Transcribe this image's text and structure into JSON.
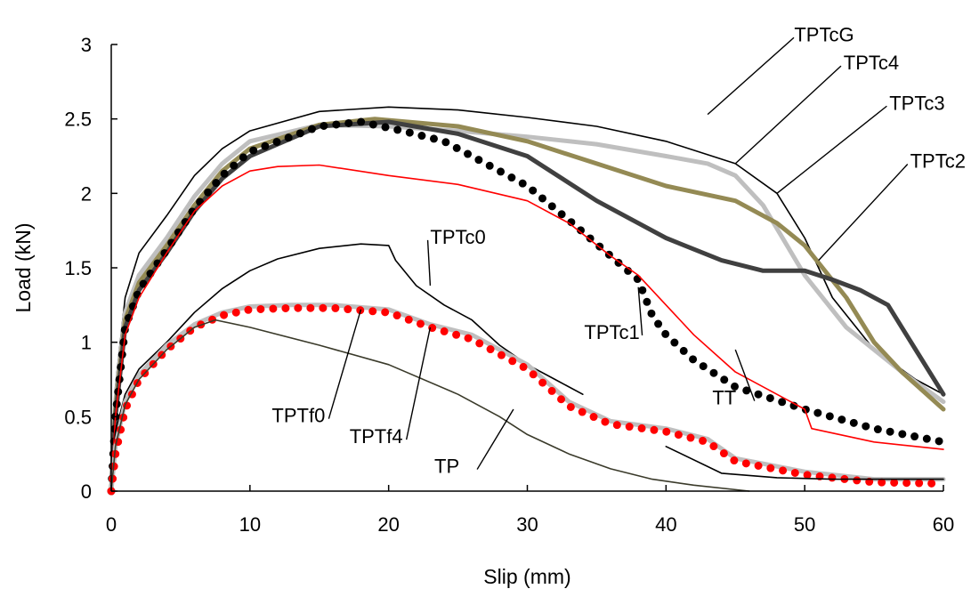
{
  "chart_data": {
    "type": "line",
    "title": "",
    "xlabel": "Slip (mm)",
    "ylabel": "Load (kN)",
    "xlim": [
      0,
      60
    ],
    "ylim": [
      0,
      3
    ],
    "xticks": [
      0,
      10,
      20,
      30,
      40,
      50,
      60
    ],
    "yticks": [
      0,
      0.5,
      1,
      1.5,
      2,
      2.5,
      3
    ],
    "ytick_labels": [
      "0",
      "0.5",
      "1",
      "1.5",
      "2",
      "2.5",
      "3"
    ],
    "grid": false,
    "legend": "none",
    "series": [
      {
        "name": "TPTcG",
        "color": "#000000",
        "style": "thin",
        "x": [
          0,
          0.3,
          1,
          2,
          4,
          6,
          8,
          10,
          15,
          20,
          25,
          30,
          35,
          40,
          45,
          48,
          50,
          52,
          55,
          58,
          60
        ],
        "y": [
          0,
          0.7,
          1.3,
          1.6,
          1.85,
          2.12,
          2.3,
          2.42,
          2.55,
          2.58,
          2.56,
          2.51,
          2.45,
          2.35,
          2.2,
          2.0,
          1.7,
          1.3,
          0.95,
          0.75,
          0.65
        ]
      },
      {
        "name": "TPTc4",
        "color": "#bfbfbf",
        "style": "thick",
        "x": [
          0,
          0.3,
          1,
          2,
          4,
          6,
          8,
          10,
          15,
          20,
          25,
          30,
          35,
          40,
          43,
          45,
          47,
          50,
          53,
          55,
          57,
          60
        ],
        "y": [
          0,
          0.6,
          1.2,
          1.45,
          1.7,
          1.98,
          2.2,
          2.35,
          2.46,
          2.45,
          2.42,
          2.38,
          2.33,
          2.25,
          2.2,
          2.12,
          1.92,
          1.45,
          1.1,
          0.95,
          0.8,
          0.6
        ]
      },
      {
        "name": "TPTc3",
        "color": "#948a54",
        "style": "thick",
        "x": [
          0,
          0.3,
          1,
          2,
          4,
          6,
          8,
          10,
          15,
          19,
          25,
          30,
          35,
          40,
          45,
          48,
          50,
          53,
          55,
          57,
          60
        ],
        "y": [
          0,
          0.55,
          1.15,
          1.4,
          1.65,
          1.92,
          2.15,
          2.3,
          2.46,
          2.5,
          2.45,
          2.35,
          2.2,
          2.05,
          1.95,
          1.8,
          1.65,
          1.3,
          1.0,
          0.8,
          0.55
        ]
      },
      {
        "name": "TPTc2",
        "color": "#404040",
        "style": "thick",
        "x": [
          0,
          0.3,
          1,
          2,
          4,
          6,
          8,
          10,
          15,
          20,
          25,
          30,
          35,
          40,
          44,
          47,
          50,
          52,
          54,
          56,
          58,
          60
        ],
        "y": [
          0,
          0.5,
          1.1,
          1.35,
          1.6,
          1.88,
          2.1,
          2.25,
          2.45,
          2.48,
          2.4,
          2.25,
          1.95,
          1.7,
          1.55,
          1.48,
          1.48,
          1.42,
          1.35,
          1.25,
          0.95,
          0.65
        ]
      },
      {
        "name": "TPTc1",
        "color": "#000000",
        "style": "dotted-thick",
        "x": [
          0,
          0.3,
          1,
          2,
          4,
          6,
          8,
          10,
          15,
          18,
          21,
          24,
          27,
          30,
          33,
          36,
          38,
          39,
          40,
          42,
          45,
          50,
          55,
          60
        ],
        "y": [
          0,
          0.5,
          1.1,
          1.35,
          1.62,
          1.9,
          2.12,
          2.28,
          2.45,
          2.48,
          2.42,
          2.35,
          2.2,
          2.05,
          1.82,
          1.58,
          1.42,
          1.18,
          1.05,
          0.88,
          0.7,
          0.55,
          0.42,
          0.33
        ]
      },
      {
        "name": "TT",
        "color": "#ff0000",
        "style": "thin",
        "x": [
          0,
          0.3,
          1,
          2,
          4,
          6,
          8,
          10,
          12,
          15,
          20,
          25,
          30,
          33,
          36,
          38,
          40,
          42,
          45,
          50,
          50.5,
          55,
          60
        ],
        "y": [
          0,
          0.5,
          1.05,
          1.3,
          1.6,
          1.88,
          2.05,
          2.15,
          2.18,
          2.19,
          2.12,
          2.06,
          1.95,
          1.8,
          1.58,
          1.45,
          1.25,
          1.05,
          0.8,
          0.55,
          0.42,
          0.33,
          0.28
        ]
      },
      {
        "name": "TPTc0",
        "color": "#000000",
        "style": "thin",
        "x": [
          0,
          0.3,
          1,
          2,
          4,
          6,
          8,
          10,
          12,
          15,
          18,
          20,
          20.5,
          22,
          24,
          26,
          28,
          30,
          32,
          34
        ],
        "y": [
          0,
          0.4,
          0.65,
          0.82,
          1.0,
          1.2,
          1.36,
          1.48,
          1.56,
          1.63,
          1.66,
          1.65,
          1.55,
          1.38,
          1.25,
          1.15,
          0.98,
          0.85,
          0.75,
          0.65
        ]
      },
      {
        "name": "TPTf4",
        "color": "#bfbfbf",
        "style": "thick",
        "x": [
          0,
          0.3,
          1,
          2,
          4,
          6,
          8,
          10,
          13,
          16,
          20,
          23,
          26,
          30,
          33,
          36,
          40,
          43,
          45,
          50,
          55,
          60
        ],
        "y": [
          0,
          0.3,
          0.6,
          0.78,
          0.98,
          1.12,
          1.2,
          1.24,
          1.25,
          1.25,
          1.22,
          1.12,
          1.05,
          0.85,
          0.6,
          0.47,
          0.42,
          0.35,
          0.22,
          0.13,
          0.08,
          0.08
        ]
      },
      {
        "name": "TPTf0",
        "color": "#ff0000",
        "style": "dotted-thick",
        "x": [
          0,
          0.3,
          1,
          2,
          4,
          6,
          8,
          10,
          13,
          16,
          20,
          23,
          26,
          30,
          33,
          36,
          40,
          43,
          45,
          50,
          55,
          60
        ],
        "y": [
          0,
          0.25,
          0.55,
          0.75,
          0.95,
          1.1,
          1.18,
          1.22,
          1.23,
          1.23,
          1.2,
          1.1,
          1.02,
          0.82,
          0.57,
          0.45,
          0.4,
          0.33,
          0.2,
          0.11,
          0.06,
          0.05
        ]
      },
      {
        "name": "TP",
        "color": "#3a3a2a",
        "style": "thin",
        "x": [
          0,
          0.3,
          1,
          2,
          4,
          6,
          7.5,
          10,
          15,
          20,
          25,
          28,
          30,
          33,
          36,
          39,
          42,
          46
        ],
        "y": [
          0,
          0.3,
          0.58,
          0.75,
          0.95,
          1.1,
          1.15,
          1.1,
          0.98,
          0.85,
          0.65,
          0.5,
          0.38,
          0.25,
          0.15,
          0.08,
          0.04,
          0
        ]
      },
      {
        "name": "",
        "color": "#000000",
        "style": "thin",
        "x": [
          40,
          44,
          48,
          52,
          56,
          60
        ],
        "y": [
          0.3,
          0.12,
          0.09,
          0.08,
          0.08,
          0.08
        ]
      }
    ],
    "labels": [
      {
        "text": "TPTcG",
        "x": 51.4,
        "y": 3.07,
        "ax": 43,
        "ay": 2.53
      },
      {
        "text": "TPTc4",
        "x": 54.8,
        "y": 2.88,
        "ax": 45,
        "ay": 2.2
      },
      {
        "text": "TPTc3",
        "x": 58.1,
        "y": 2.61,
        "ax": 48,
        "ay": 2.0
      },
      {
        "text": "TPTc2",
        "x": 59.6,
        "y": 2.22,
        "ax": 51,
        "ay": 1.55
      },
      {
        "text": "TPTc0",
        "x": 25.0,
        "y": 1.71,
        "ax": 23,
        "ay": 1.38
      },
      {
        "text": "TPTc1",
        "x": 36.1,
        "y": 1.07,
        "ax": 38,
        "ay": 1.37
      },
      {
        "text": "TT",
        "x": 44.2,
        "y": 0.63,
        "ax": 45,
        "ay": 0.95
      },
      {
        "text": "TPTf0",
        "x": 13.5,
        "y": 0.51,
        "ax": 18,
        "ay": 1.22
      },
      {
        "text": "TPTf4",
        "x": 19.1,
        "y": 0.37,
        "ax": 23,
        "ay": 1.1
      },
      {
        "text": "TP",
        "x": 24.2,
        "y": 0.17,
        "ax": 29,
        "ay": 0.55
      }
    ]
  }
}
